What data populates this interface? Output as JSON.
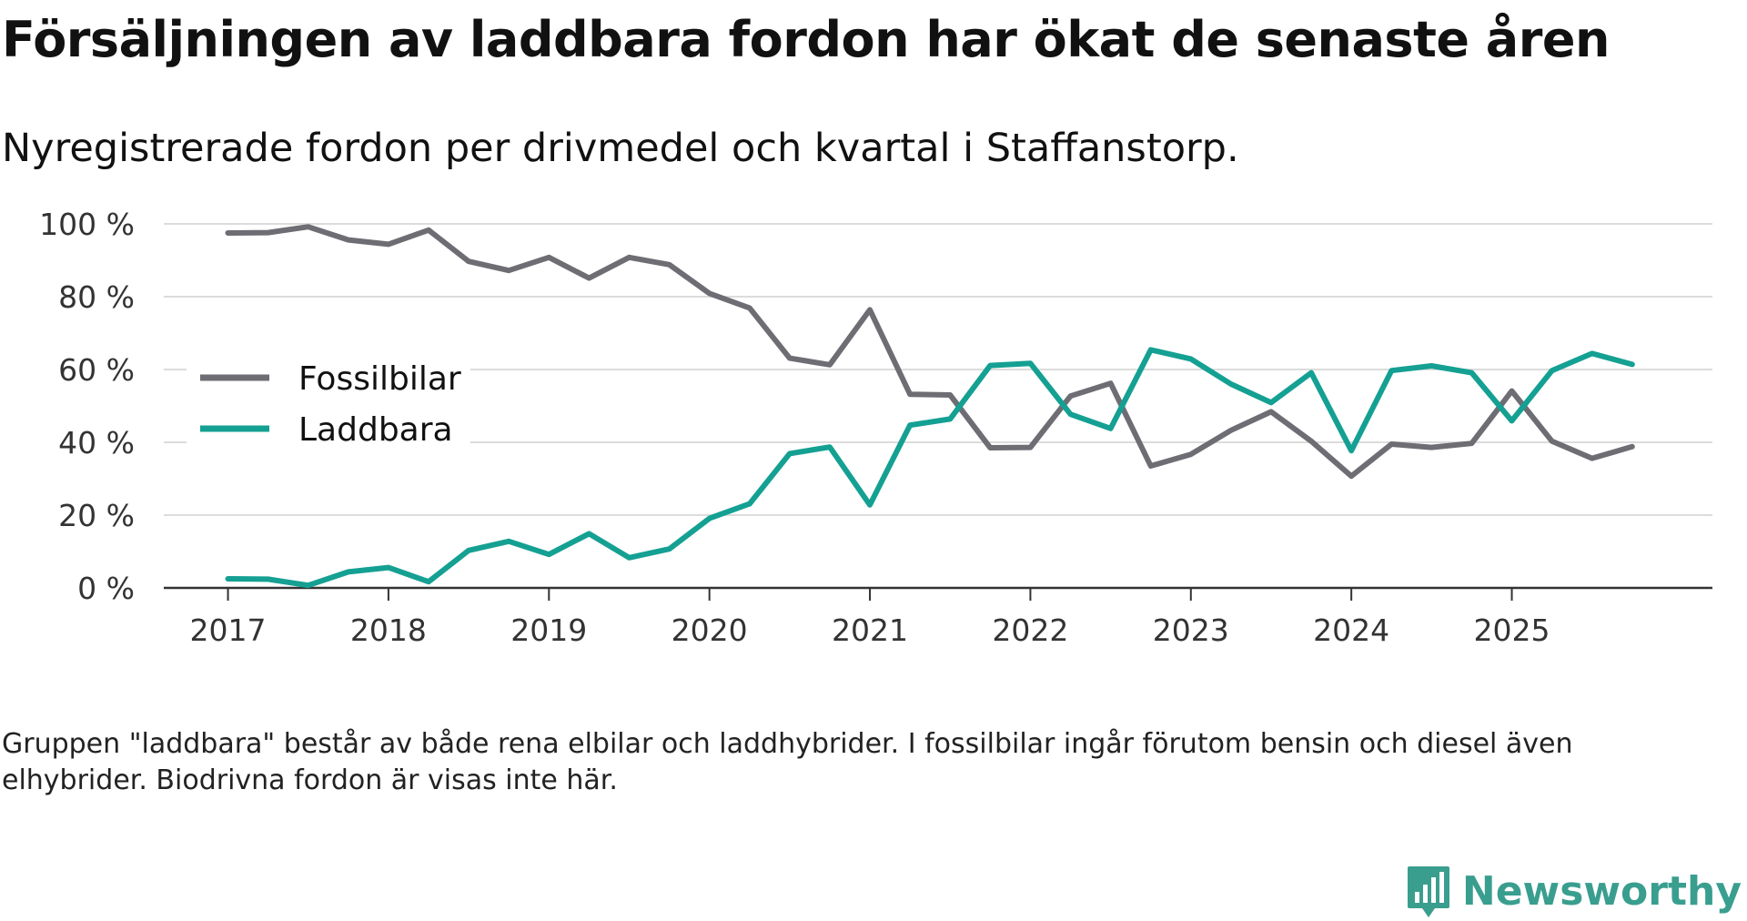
{
  "title": "Försäljningen av laddbara fordon har ökat de senaste åren",
  "subtitle": "Nyregistrerade fordon per drivmedel och kvartal i Staffanstorp.",
  "footnote": "Gruppen \"laddbara\" består av både rena elbilar och laddhybrider. I fossilbilar ingår förutom bensin och diesel även elhybrider. Biodrivna fordon är visas inte här.",
  "brand": {
    "name": "Newsworthy",
    "color": "#3a9e8f",
    "logo_icon": "bar-chart-icon"
  },
  "chart_data": {
    "type": "line",
    "title": "Försäljningen av laddbara fordon har ökat de senaste åren",
    "xlabel": "",
    "ylabel": "",
    "grid": true,
    "legend_position": "left",
    "ylim": [
      0,
      100
    ],
    "yticks": [
      0,
      20,
      40,
      60,
      80,
      100
    ],
    "ytick_labels": [
      "0 %",
      "20 %",
      "40 %",
      "60 %",
      "80 %",
      "100 %"
    ],
    "xticks": [
      2017,
      2018,
      2019,
      2020,
      2021,
      2022,
      2023,
      2024,
      2025
    ],
    "xtick_labels": [
      "2017",
      "2018",
      "2019",
      "2020",
      "2021",
      "2022",
      "2023",
      "2024",
      "2025"
    ],
    "xlim": [
      2016.6,
      2026.25
    ],
    "x": [
      2017.0,
      2017.25,
      2017.5,
      2017.75,
      2018.0,
      2018.25,
      2018.5,
      2018.75,
      2019.0,
      2019.25,
      2019.5,
      2019.75,
      2020.0,
      2020.25,
      2020.5,
      2020.75,
      2021.0,
      2021.25,
      2021.5,
      2021.75,
      2022.0,
      2022.25,
      2022.5,
      2022.75,
      2023.0,
      2023.25,
      2023.5,
      2023.75,
      2024.0,
      2024.25,
      2024.5,
      2024.75,
      2025.0,
      2025.25,
      2025.5,
      2025.75
    ],
    "series": [
      {
        "name": "Fossilbilar",
        "color": "#6e6d74",
        "values": [
          97.5,
          97.6,
          99.2,
          95.6,
          94.4,
          98.3,
          89.7,
          87.2,
          90.8,
          85.1,
          90.8,
          88.8,
          80.9,
          76.9,
          63.1,
          61.3,
          76.4,
          53.2,
          53.0,
          38.5,
          38.6,
          52.7,
          56.2,
          33.5,
          36.7,
          43.3,
          48.4,
          40.3,
          30.7,
          39.5,
          38.6,
          39.7,
          54.1,
          40.3,
          35.6,
          38.8
        ]
      },
      {
        "name": "Laddbara",
        "color": "#14a092",
        "values": [
          2.5,
          2.4,
          0.7,
          4.4,
          5.6,
          1.7,
          10.3,
          12.8,
          9.2,
          14.9,
          8.3,
          10.7,
          19.1,
          23.1,
          36.9,
          38.7,
          22.8,
          44.7,
          46.4,
          61.1,
          61.7,
          47.7,
          43.8,
          65.4,
          62.9,
          56.0,
          50.9,
          59.1,
          37.7,
          59.7,
          61.0,
          59.1,
          45.9,
          59.7,
          64.4,
          61.4
        ]
      }
    ]
  }
}
